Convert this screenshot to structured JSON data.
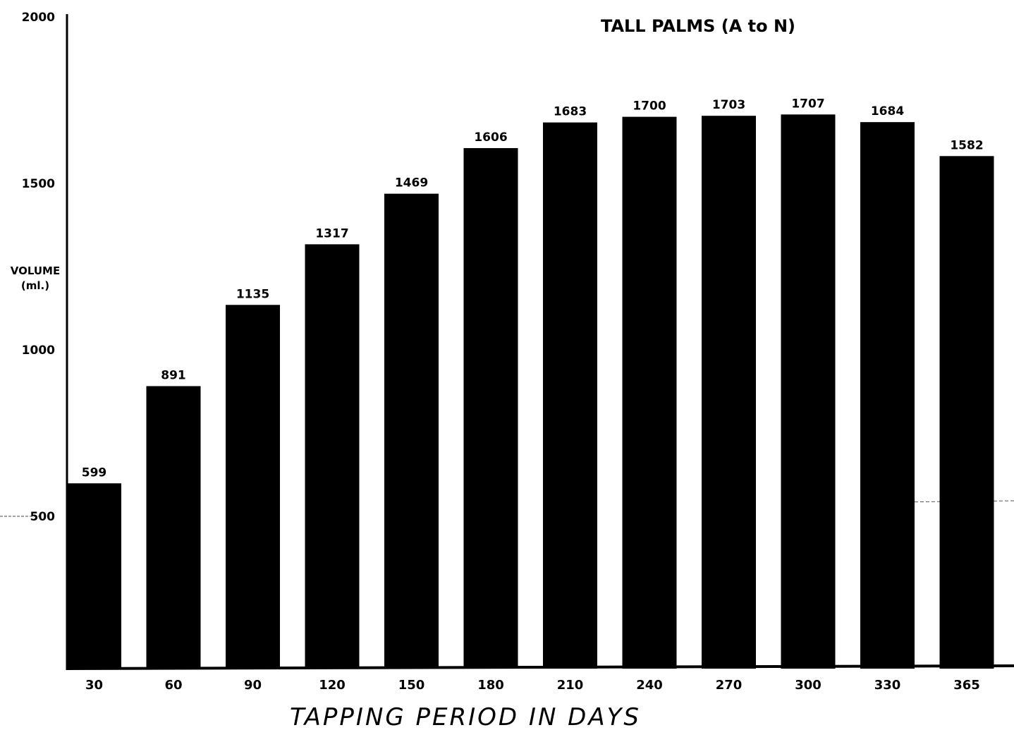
{
  "chart_data": {
    "type": "bar",
    "title": "TALL PALMS (A to N)",
    "xlabel": "TAPPING PERIOD IN DAYS",
    "ylabel_line1": "VOLUME",
    "ylabel_line2": "(ml.)",
    "categories": [
      "30",
      "60",
      "90",
      "120",
      "150",
      "180",
      "210",
      "240",
      "270",
      "300",
      "330",
      "365"
    ],
    "values": [
      599,
      891,
      1135,
      1317,
      1469,
      1606,
      1683,
      1700,
      1703,
      1707,
      1684,
      1582
    ],
    "yticks": [
      500,
      1000,
      1500,
      2000
    ],
    "ylim": [
      0,
      2000
    ],
    "grid": false,
    "bar_color": "#000000"
  }
}
